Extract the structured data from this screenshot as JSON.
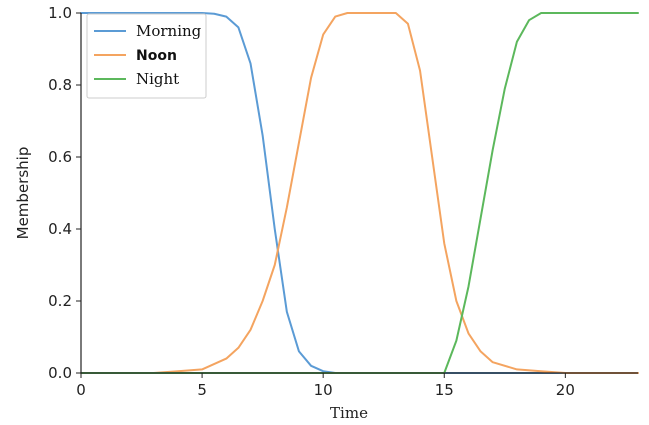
{
  "chart_data": {
    "type": "line",
    "xlabel": "Time",
    "ylabel": "Membership",
    "xlim": [
      0,
      23
    ],
    "ylim": [
      0,
      1
    ],
    "x_ticks": [
      0,
      5,
      10,
      15,
      20
    ],
    "y_ticks": [
      0.0,
      0.2,
      0.4,
      0.6,
      0.8,
      1.0
    ],
    "x_tick_labels": [
      "0",
      "5",
      "10",
      "15",
      "20"
    ],
    "y_tick_labels": [
      "0.0",
      "0.2",
      "0.4",
      "0.6",
      "0.8",
      "1.0"
    ],
    "grid": false,
    "legend_position": "top-left",
    "series": [
      {
        "name": "Morning",
        "color": "#5b9bd5",
        "points": [
          [
            0,
            1.0
          ],
          [
            5,
            1.0
          ],
          [
            5.5,
            0.998
          ],
          [
            6,
            0.99
          ],
          [
            6.5,
            0.96
          ],
          [
            7,
            0.86
          ],
          [
            7.5,
            0.66
          ],
          [
            8,
            0.4
          ],
          [
            8.5,
            0.17
          ],
          [
            9,
            0.06
          ],
          [
            9.5,
            0.02
          ],
          [
            10,
            0.005
          ],
          [
            10.5,
            0.0
          ],
          [
            23,
            0.0
          ]
        ]
      },
      {
        "name": "Noon",
        "color": "#f4a460",
        "points": [
          [
            0,
            0.0
          ],
          [
            3,
            0.0
          ],
          [
            4,
            0.005
          ],
          [
            5,
            0.01
          ],
          [
            6,
            0.04
          ],
          [
            6.5,
            0.07
          ],
          [
            7,
            0.12
          ],
          [
            7.5,
            0.2
          ],
          [
            8,
            0.3
          ],
          [
            8.5,
            0.46
          ],
          [
            9,
            0.64
          ],
          [
            9.5,
            0.82
          ],
          [
            10,
            0.94
          ],
          [
            10.5,
            0.99
          ],
          [
            11,
            1.0
          ],
          [
            13,
            1.0
          ],
          [
            13.5,
            0.97
          ],
          [
            14,
            0.84
          ],
          [
            14.5,
            0.6
          ],
          [
            15,
            0.36
          ],
          [
            15.5,
            0.2
          ],
          [
            16,
            0.11
          ],
          [
            16.5,
            0.06
          ],
          [
            17,
            0.03
          ],
          [
            18,
            0.01
          ],
          [
            19,
            0.005
          ],
          [
            20,
            0.0
          ],
          [
            23,
            0.0
          ]
        ]
      },
      {
        "name": "Night",
        "color": "#5cb85c",
        "points": [
          [
            0,
            0.0
          ],
          [
            15,
            0.0
          ],
          [
            15.5,
            0.09
          ],
          [
            16,
            0.24
          ],
          [
            16.5,
            0.43
          ],
          [
            17,
            0.62
          ],
          [
            17.5,
            0.79
          ],
          [
            18,
            0.92
          ],
          [
            18.5,
            0.98
          ],
          [
            19,
            1.0
          ],
          [
            23,
            1.0
          ]
        ]
      }
    ]
  }
}
